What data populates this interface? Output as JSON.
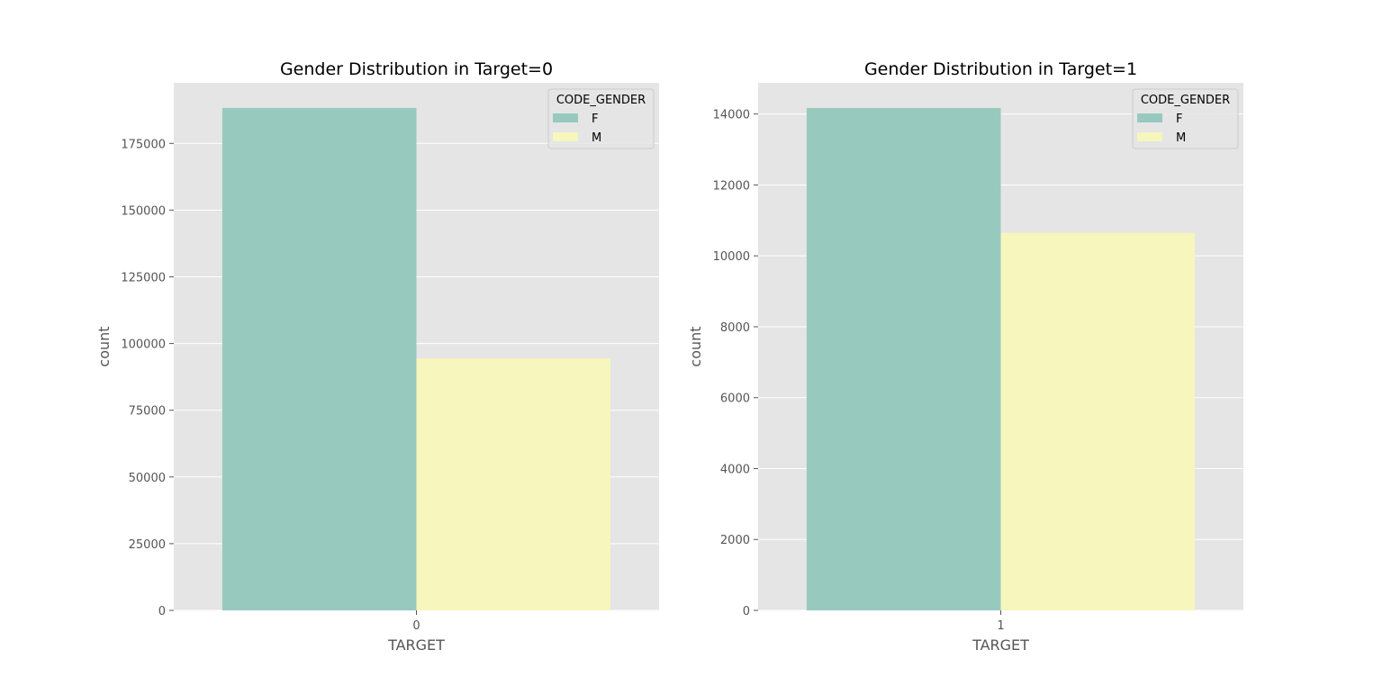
{
  "chart_data": [
    {
      "type": "bar",
      "title": "Gender Distribution in Target=0",
      "xlabel": "TARGET",
      "ylabel": "count",
      "categories": [
        "0"
      ],
      "series": [
        {
          "name": "F",
          "values": [
            188300
          ],
          "color": "#98c9bf"
        },
        {
          "name": "M",
          "values": [
            94400
          ],
          "color": "#f6f6bd"
        }
      ],
      "ylim": [
        0,
        197700
      ],
      "yticks": [
        0,
        25000,
        50000,
        75000,
        100000,
        125000,
        150000,
        175000
      ],
      "legend_title": "CODE_GENDER",
      "legend_position": "top-right",
      "grid": true
    },
    {
      "type": "bar",
      "title": "Gender Distribution in Target=1",
      "xlabel": "TARGET",
      "ylabel": "count",
      "categories": [
        "1"
      ],
      "series": [
        {
          "name": "F",
          "values": [
            14170
          ],
          "color": "#98c9bf"
        },
        {
          "name": "M",
          "values": [
            10650
          ],
          "color": "#f6f6bd"
        }
      ],
      "ylim": [
        0,
        14880
      ],
      "yticks": [
        0,
        2000,
        4000,
        6000,
        8000,
        10000,
        12000,
        14000
      ],
      "legend_title": "CODE_GENDER",
      "legend_position": "top-right",
      "grid": true
    }
  ]
}
